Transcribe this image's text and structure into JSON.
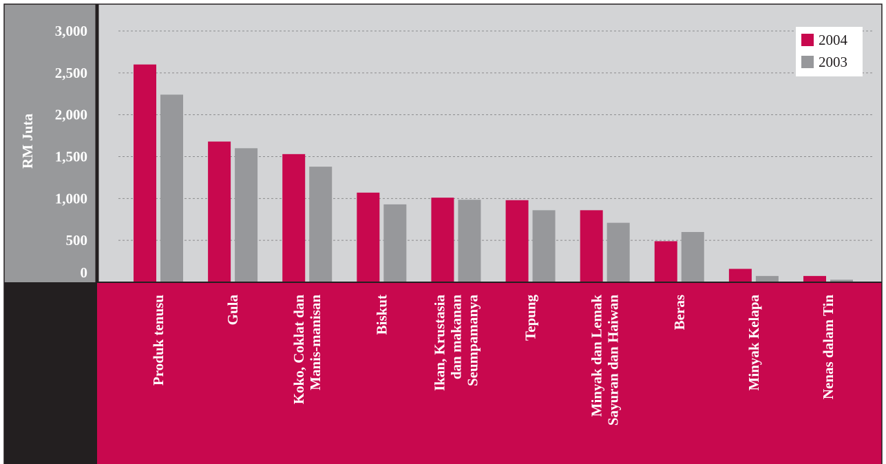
{
  "chart_data": {
    "type": "bar",
    "title": "",
    "ylabel": "RM Juta",
    "xlabel": "",
    "ylim": [
      0,
      3000
    ],
    "yticks": [
      0,
      500,
      1000,
      1500,
      2000,
      2500,
      3000
    ],
    "ytick_labels": [
      "0",
      "500",
      "1,000",
      "1,500",
      "2,000",
      "2,500",
      "3,000"
    ],
    "grid": true,
    "legend_position": "top-right",
    "categories": [
      [
        "Produk tenusu"
      ],
      [
        "Gula"
      ],
      [
        "Koko, Coklat dan",
        "Manis-manisan"
      ],
      [
        "Biskut"
      ],
      [
        "Ikan, Krustasia",
        "dan makanan",
        "Seumpamanya"
      ],
      [
        "Tepung"
      ],
      [
        "Minyak dan Lemak",
        "Sayuran dan Haiwan"
      ],
      [
        "Beras"
      ],
      [
        "Minyak Kelapa"
      ],
      [
        "Nenas dalam Tin"
      ]
    ],
    "series": [
      {
        "name": "2004",
        "color": "#c8084e",
        "values": [
          2600,
          1680,
          1530,
          1070,
          1010,
          980,
          860,
          490,
          160,
          75
        ]
      },
      {
        "name": "2003",
        "color": "#97989b",
        "values": [
          2240,
          1600,
          1380,
          930,
          985,
          860,
          710,
          600,
          75,
          30
        ]
      }
    ]
  },
  "colors": {
    "plot_bg": "#d3d4d6",
    "axis_panel": "#98999b",
    "category_panel": "#c8084e",
    "corner": "#231f20",
    "frame": "#231f20",
    "grid": "#8a8b8d",
    "text_light": "#ffffff",
    "text_dark": "#231f20"
  }
}
